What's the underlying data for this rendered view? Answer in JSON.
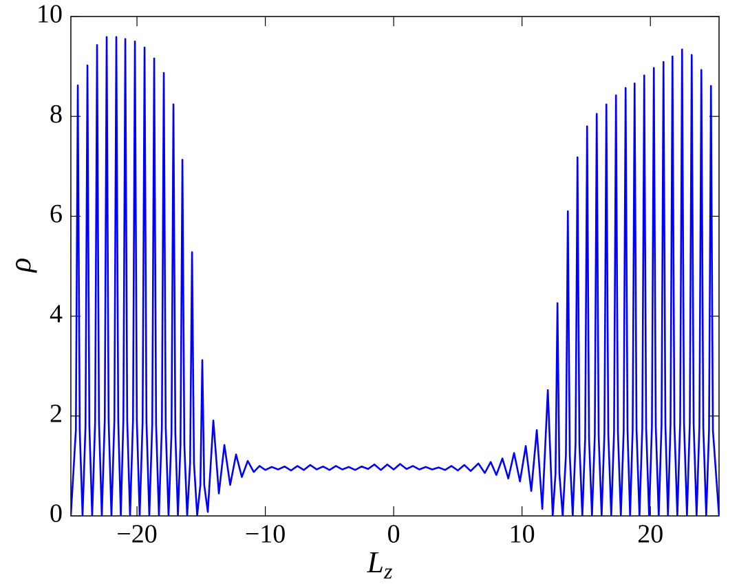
{
  "chart_data": {
    "type": "line",
    "xlabel": "L",
    "xlabel_subscript": "z",
    "ylabel": "ρ",
    "xlim": [
      -25.15,
      25.35
    ],
    "ylim": [
      0,
      10
    ],
    "xticks": [
      {
        "value": -20,
        "label": "−20"
      },
      {
        "value": -10,
        "label": "−10"
      },
      0,
      10,
      20
    ],
    "yticks": [
      0,
      2,
      4,
      6,
      8,
      10
    ],
    "x": [
      -25.15,
      -24.76,
      -24.61,
      -24.46,
      -24.24,
      -24.01,
      -23.86,
      -23.71,
      -23.49,
      -23.26,
      -23.11,
      -22.96,
      -22.74,
      -22.51,
      -22.36,
      -22.21,
      -21.99,
      -21.76,
      -21.61,
      -21.46,
      -21.26,
      -21.06,
      -20.91,
      -20.76,
      -20.54,
      -20.31,
      -20.16,
      -20.01,
      -19.79,
      -19.56,
      -19.41,
      -19.26,
      -19.04,
      -18.81,
      -18.66,
      -18.51,
      -18.29,
      -18.06,
      -17.91,
      -17.76,
      -17.54,
      -17.31,
      -17.16,
      -17.01,
      -16.81,
      -16.61,
      -16.46,
      -16.31,
      -16.09,
      -15.86,
      -15.71,
      -15.56,
      -15.31,
      -15.06,
      -14.91,
      -14.76,
      -14.48,
      -14.05,
      -13.62,
      -13.19,
      -12.74,
      -12.28,
      -11.83,
      -11.37,
      -10.9,
      -10.45,
      -10.0,
      -9.5,
      -9.0,
      -8.5,
      -8.0,
      -7.5,
      -7.0,
      -6.5,
      -6.0,
      -5.5,
      -5.0,
      -4.5,
      -4.0,
      -3.5,
      -3.0,
      -2.5,
      -2.0,
      -1.5,
      -1.0,
      -0.5,
      0,
      0.5,
      1.0,
      1.5,
      2.0,
      2.5,
      3.0,
      3.5,
      4.0,
      4.5,
      5.0,
      5.5,
      6.0,
      6.6,
      7.1,
      7.56,
      8.0,
      8.47,
      8.93,
      9.38,
      9.84,
      10.29,
      10.72,
      11.15,
      11.58,
      12.01,
      12.39,
      12.61,
      12.76,
      12.91,
      13.17,
      13.42,
      13.57,
      13.72,
      13.95,
      14.17,
      14.32,
      14.47,
      14.7,
      14.92,
      15.07,
      15.22,
      15.45,
      15.67,
      15.82,
      15.97,
      16.2,
      16.42,
      16.57,
      16.72,
      16.95,
      17.17,
      17.32,
      17.47,
      17.7,
      17.92,
      18.07,
      18.22,
      18.42,
      18.62,
      18.77,
      18.92,
      19.15,
      19.37,
      19.52,
      19.67,
      19.9,
      20.12,
      20.27,
      20.42,
      20.65,
      20.87,
      21.02,
      21.17,
      21.37,
      21.57,
      21.72,
      21.87,
      22.1,
      22.32,
      22.47,
      22.62,
      22.85,
      23.07,
      23.22,
      23.37,
      23.6,
      23.82,
      23.97,
      24.12,
      24.35,
      24.57,
      24.72,
      24.87,
      25.35
    ],
    "series": [
      {
        "color": "#0000ff",
        "values": [
          0.02,
          1.72,
          8.62,
          1.72,
          0,
          1.8,
          9.02,
          1.8,
          0,
          1.89,
          9.43,
          1.89,
          0,
          1.92,
          9.59,
          1.92,
          0,
          1.92,
          9.59,
          1.92,
          0,
          1.91,
          9.55,
          1.91,
          0,
          1.9,
          9.5,
          1.9,
          0,
          1.88,
          9.38,
          1.88,
          0,
          1.83,
          9.16,
          1.83,
          0,
          1.77,
          8.87,
          1.77,
          0,
          1.65,
          8.24,
          1.65,
          0,
          1.43,
          7.13,
          1.43,
          0,
          1.06,
          5.28,
          1.06,
          0.01,
          0.62,
          3.12,
          0.62,
          0.08,
          1.91,
          0.45,
          1.42,
          0.62,
          1.23,
          0.78,
          1.1,
          0.88,
          1.0,
          0.92,
          0.98,
          0.93,
          0.99,
          0.91,
          1.0,
          0.92,
          1.02,
          0.93,
          0.99,
          0.92,
          1.0,
          0.93,
          0.98,
          0.92,
          0.99,
          0.94,
          1.03,
          0.92,
          1.03,
          0.93,
          1.04,
          0.94,
          1.0,
          0.93,
          0.98,
          0.93,
          0.97,
          0.92,
          1.0,
          0.91,
          1.02,
          0.9,
          1.05,
          0.86,
          1.08,
          0.82,
          1.15,
          0.75,
          1.26,
          0.69,
          1.4,
          0.5,
          1.72,
          0.14,
          2.52,
          0,
          0.85,
          4.26,
          0.85,
          0,
          1.22,
          6.1,
          1.22,
          0,
          1.44,
          7.18,
          1.44,
          0,
          1.56,
          7.8,
          1.56,
          0,
          1.61,
          8.05,
          1.61,
          0,
          1.65,
          8.24,
          1.65,
          0,
          1.68,
          8.42,
          1.68,
          0,
          1.71,
          8.57,
          1.71,
          0,
          1.73,
          8.66,
          1.73,
          0,
          1.76,
          8.82,
          1.76,
          0,
          1.79,
          8.97,
          1.79,
          0,
          1.82,
          9.09,
          1.82,
          0,
          1.84,
          9.2,
          1.84,
          0,
          1.87,
          9.34,
          1.87,
          0,
          1.85,
          9.23,
          1.85,
          0,
          1.79,
          8.93,
          1.79,
          0,
          1.72,
          8.61,
          1.72,
          0
        ]
      }
    ]
  }
}
